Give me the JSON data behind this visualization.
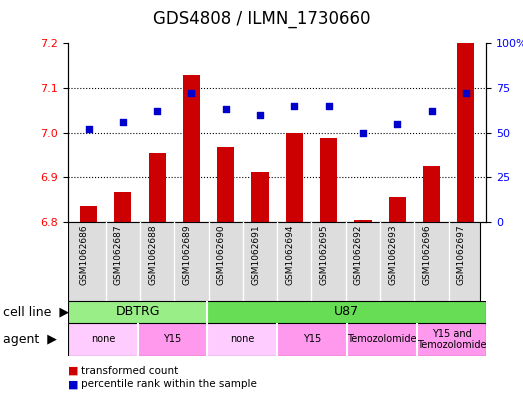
{
  "title": "GDS4808 / ILMN_1730660",
  "samples": [
    "GSM1062686",
    "GSM1062687",
    "GSM1062688",
    "GSM1062689",
    "GSM1062690",
    "GSM1062691",
    "GSM1062694",
    "GSM1062695",
    "GSM1062692",
    "GSM1062693",
    "GSM1062696",
    "GSM1062697"
  ],
  "bar_values": [
    6.835,
    6.868,
    6.955,
    7.13,
    6.968,
    6.912,
    7.0,
    6.988,
    6.805,
    6.855,
    6.925,
    7.2
  ],
  "dot_values": [
    52,
    56,
    62,
    72,
    63,
    60,
    65,
    65,
    50,
    55,
    62,
    72
  ],
  "ylim_left": [
    6.8,
    7.2
  ],
  "ylim_right": [
    0,
    100
  ],
  "yticks_left": [
    6.8,
    6.9,
    7.0,
    7.1,
    7.2
  ],
  "yticks_right": [
    0,
    25,
    50,
    75,
    100
  ],
  "ytick_labels_right": [
    "0",
    "25",
    "50",
    "75",
    "100%"
  ],
  "bar_color": "#cc0000",
  "dot_color": "#0000cc",
  "bar_bottom": 6.8,
  "grid_dotted_at": [
    6.9,
    7.0,
    7.1
  ],
  "cell_line_groups": [
    {
      "label": "DBTRG",
      "span": [
        0,
        4
      ],
      "color": "#99ee88"
    },
    {
      "label": "U87",
      "span": [
        4,
        12
      ],
      "color": "#66dd55"
    }
  ],
  "agent_groups": [
    {
      "label": "none",
      "span": [
        0,
        2
      ],
      "color": "#ffccff"
    },
    {
      "label": "Y15",
      "span": [
        2,
        4
      ],
      "color": "#ff99ee"
    },
    {
      "label": "none",
      "span": [
        4,
        6
      ],
      "color": "#ffccff"
    },
    {
      "label": "Y15",
      "span": [
        6,
        8
      ],
      "color": "#ff99ee"
    },
    {
      "label": "Temozolomide",
      "span": [
        8,
        10
      ],
      "color": "#ff99ee"
    },
    {
      "label": "Y15 and\nTemozolomide",
      "span": [
        10,
        12
      ],
      "color": "#ff99ee"
    }
  ],
  "tick_fontsize": 8,
  "label_fontsize": 9,
  "title_fontsize": 12,
  "sample_fontsize": 6.5,
  "xtick_bg_color": "#dddddd",
  "cell_line_dividers": [
    4
  ],
  "agent_dividers": [
    2,
    4,
    6,
    8,
    10
  ]
}
